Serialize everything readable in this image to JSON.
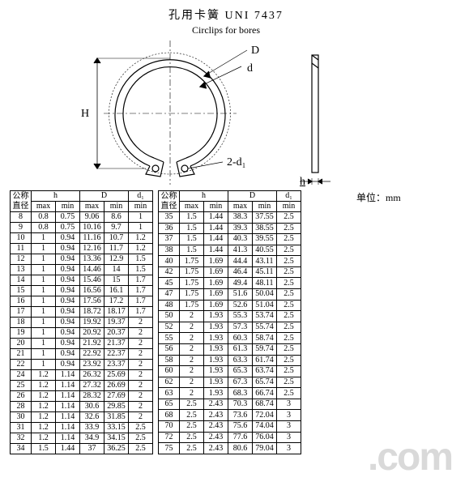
{
  "header": {
    "cn": "孔用卡簧   UNI 7437",
    "en": "Circlips for bores"
  },
  "labels": {
    "D": "D",
    "d_small": "d",
    "H": "H",
    "d1": "2-d₁",
    "h": "h",
    "unit": "单位：mm"
  },
  "diagram": {
    "stroke": "#000000",
    "stroke_width": 1.2,
    "ring_outer_r": 70,
    "ring_inner_r": 60,
    "bore_r": 80
  },
  "table_headers": {
    "nom_cn": "公称直径",
    "h": "h",
    "D": "D",
    "d1": "d₁",
    "max": "max",
    "min": "min"
  },
  "left_rows": [
    [
      "8",
      "0.8",
      "0.75",
      "9.06",
      "8.6",
      "1"
    ],
    [
      "9",
      "0.8",
      "0.75",
      "10.16",
      "9.7",
      "1"
    ],
    [
      "10",
      "1",
      "0.94",
      "11.16",
      "10.7",
      "1.2"
    ],
    [
      "11",
      "1",
      "0.94",
      "12.16",
      "11.7",
      "1.2"
    ],
    [
      "12",
      "1",
      "0.94",
      "13.36",
      "12.9",
      "1.5"
    ],
    [
      "13",
      "1",
      "0.94",
      "14.46",
      "14",
      "1.5"
    ],
    [
      "14",
      "1",
      "0.94",
      "15.46",
      "15",
      "1.7"
    ],
    [
      "15",
      "1",
      "0.94",
      "16.56",
      "16.1",
      "1.7"
    ],
    [
      "16",
      "1",
      "0.94",
      "17.56",
      "17.2",
      "1.7"
    ],
    [
      "17",
      "1",
      "0.94",
      "18.72",
      "18.17",
      "1.7"
    ],
    [
      "18",
      "1",
      "0.94",
      "19.92",
      "19.37",
      "2"
    ],
    [
      "19",
      "1",
      "0.94",
      "20.92",
      "20.37",
      "2"
    ],
    [
      "20",
      "1",
      "0.94",
      "21.92",
      "21.37",
      "2"
    ],
    [
      "21",
      "1",
      "0.94",
      "22.92",
      "22.37",
      "2"
    ],
    [
      "22",
      "1",
      "0.94",
      "23.92",
      "23.37",
      "2"
    ],
    [
      "24",
      "1.2",
      "1.14",
      "26.32",
      "25.69",
      "2"
    ],
    [
      "25",
      "1.2",
      "1.14",
      "27.32",
      "26.69",
      "2"
    ],
    [
      "26",
      "1.2",
      "1.14",
      "28.32",
      "27.69",
      "2"
    ],
    [
      "28",
      "1.2",
      "1.14",
      "30.6",
      "29.85",
      "2"
    ],
    [
      "30",
      "1.2",
      "1.14",
      "32.6",
      "31.85",
      "2"
    ],
    [
      "31",
      "1.2",
      "1.14",
      "33.9",
      "33.15",
      "2.5"
    ],
    [
      "32",
      "1.2",
      "1.14",
      "34.9",
      "34.15",
      "2.5"
    ],
    [
      "34",
      "1.5",
      "1.44",
      "37",
      "36.25",
      "2.5"
    ]
  ],
  "right_rows": [
    [
      "35",
      "1.5",
      "1.44",
      "38.3",
      "37.55",
      "2.5"
    ],
    [
      "36",
      "1.5",
      "1.44",
      "39.3",
      "38.55",
      "2.5"
    ],
    [
      "37",
      "1.5",
      "1.44",
      "40.3",
      "39.55",
      "2.5"
    ],
    [
      "38",
      "1.5",
      "1.44",
      "41.3",
      "40.55",
      "2.5"
    ],
    [
      "40",
      "1.75",
      "1.69",
      "44.4",
      "43.11",
      "2.5"
    ],
    [
      "42",
      "1.75",
      "1.69",
      "46.4",
      "45.11",
      "2.5"
    ],
    [
      "45",
      "1.75",
      "1.69",
      "49.4",
      "48.11",
      "2.5"
    ],
    [
      "47",
      "1.75",
      "1.69",
      "51.6",
      "50.04",
      "2.5"
    ],
    [
      "48",
      "1.75",
      "1.69",
      "52.6",
      "51.04",
      "2.5"
    ],
    [
      "50",
      "2",
      "1.93",
      "55.3",
      "53.74",
      "2.5"
    ],
    [
      "52",
      "2",
      "1.93",
      "57.3",
      "55.74",
      "2.5"
    ],
    [
      "55",
      "2",
      "1.93",
      "60.3",
      "58.74",
      "2.5"
    ],
    [
      "56",
      "2",
      "1.93",
      "61.3",
      "59.74",
      "2.5"
    ],
    [
      "58",
      "2",
      "1.93",
      "63.3",
      "61.74",
      "2.5"
    ],
    [
      "60",
      "2",
      "1.93",
      "65.3",
      "63.74",
      "2.5"
    ],
    [
      "62",
      "2",
      "1.93",
      "67.3",
      "65.74",
      "2.5"
    ],
    [
      "63",
      "2",
      "1.93",
      "68.3",
      "66.74",
      "2.5"
    ],
    [
      "65",
      "2.5",
      "2.43",
      "70.3",
      "68.74",
      "3"
    ],
    [
      "68",
      "2.5",
      "2.43",
      "73.6",
      "72.04",
      "3"
    ],
    [
      "70",
      "2.5",
      "2.43",
      "75.6",
      "74.04",
      "3"
    ],
    [
      "72",
      "2.5",
      "2.43",
      "77.6",
      "76.04",
      "3"
    ],
    [
      "75",
      "2.5",
      "2.43",
      "80.6",
      "79.04",
      "3"
    ]
  ],
  "watermark": ".com"
}
